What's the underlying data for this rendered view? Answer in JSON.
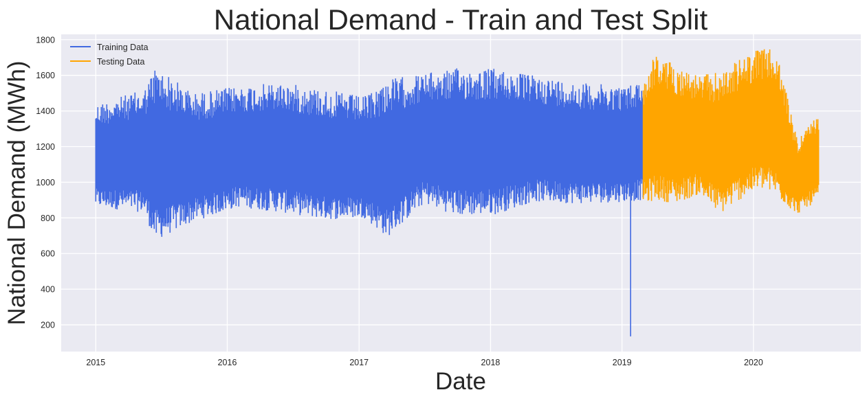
{
  "chart_data": {
    "type": "line",
    "title": "National Demand - Train and Test Split",
    "xlabel": "Date",
    "ylabel": "National Demand (MWh)",
    "x_tick_labels": [
      "2015",
      "2016",
      "2017",
      "2018",
      "2019",
      "2020"
    ],
    "y_tick_labels": [
      "200",
      "400",
      "600",
      "800",
      "1000",
      "1200",
      "1400",
      "1600",
      "1800"
    ],
    "y_ticks": [
      200,
      400,
      600,
      800,
      1000,
      1200,
      1400,
      1600,
      1800
    ],
    "ylim": [
      50,
      1830
    ],
    "xlim": [
      "2014-09-27",
      "2020-10-25"
    ],
    "grid": true,
    "legend_position": "top-left",
    "series": [
      {
        "name": "Training Data",
        "color": "#4169E1",
        "x": [
          "2015-01-01",
          "2015-05-15",
          "2015-06-15",
          "2015-10-01",
          "2016-02-01",
          "2016-06-01",
          "2016-10-01",
          "2017-01-15",
          "2017-03-20",
          "2017-07-01",
          "2017-10-01",
          "2018-01-15",
          "2018-05-01",
          "2018-09-01",
          "2019-01-15",
          "2019-03-01"
        ],
        "upper": [
          1440,
          1520,
          1650,
          1500,
          1540,
          1560,
          1520,
          1480,
          1580,
          1610,
          1640,
          1640,
          1600,
          1560,
          1540,
          1580
        ],
        "lower": [
          860,
          830,
          670,
          780,
          860,
          830,
          790,
          800,
          690,
          880,
          810,
          820,
          890,
          880,
          890,
          900
        ],
        "min_point": {
          "x": "2019-01-25",
          "y": 135
        }
      },
      {
        "name": "Testing Data",
        "color": "#FFA500",
        "x": [
          "2019-03-01",
          "2019-04-01",
          "2019-06-01",
          "2019-08-01",
          "2019-10-01",
          "2019-12-01",
          "2020-01-20",
          "2020-03-01",
          "2020-03-25",
          "2020-05-01",
          "2020-06-30"
        ],
        "upper": [
          1560,
          1720,
          1660,
          1600,
          1620,
          1700,
          1755,
          1740,
          1580,
          1250,
          1375
        ],
        "lower": [
          870,
          900,
          880,
          930,
          820,
          910,
          960,
          930,
          880,
          820,
          900
        ]
      }
    ]
  }
}
